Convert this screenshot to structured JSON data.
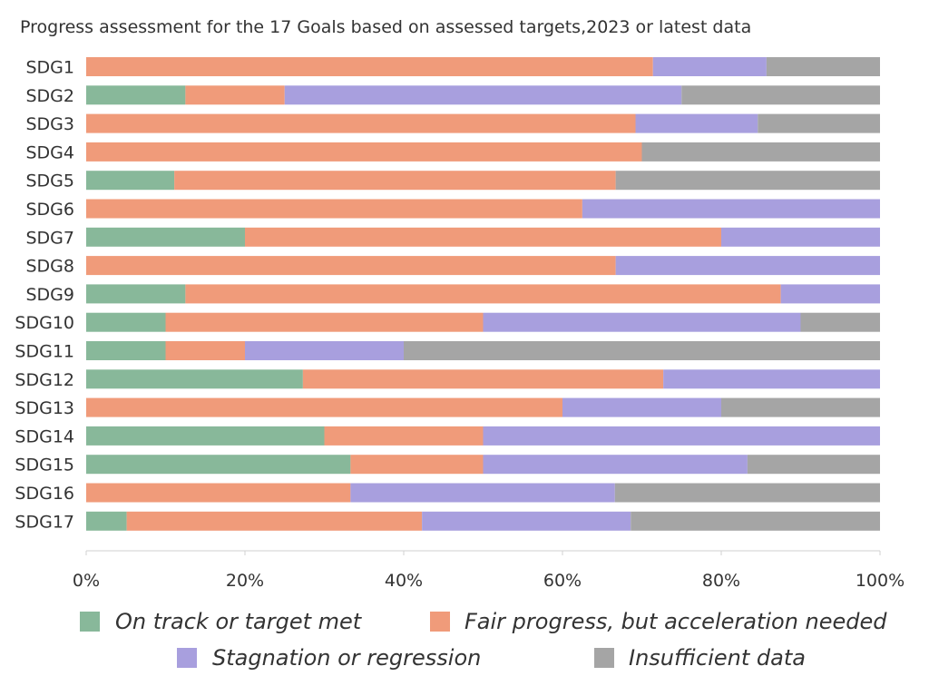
{
  "chart_data": {
    "type": "bar",
    "orientation": "horizontal",
    "stacked": true,
    "title": "Progress assessment for the 17 Goals based on assessed targets,2023 or latest data",
    "categories": [
      "SDG1",
      "SDG2",
      "SDG3",
      "SDG4",
      "SDG5",
      "SDG6",
      "SDG7",
      "SDG8",
      "SDG9",
      "SDG10",
      "SDG11",
      "SDG12",
      "SDG13",
      "SDG14",
      "SDG15",
      "SDG16",
      "SDG17"
    ],
    "xlim": [
      0,
      100
    ],
    "xticks": [
      "0%",
      "20%",
      "40%",
      "60%",
      "80%",
      "100%"
    ],
    "grid": false,
    "legend_position": "bottom",
    "series": [
      {
        "name": "On track or target met",
        "color": "#88b89a",
        "values": [
          0,
          12.5,
          0,
          0,
          11.1,
          0,
          20,
          0,
          12.5,
          10,
          10,
          27.3,
          0,
          30,
          33.3,
          0,
          5.1
        ]
      },
      {
        "name": "Fair progress, but acceleration needed",
        "color": "#f09b7a",
        "values": [
          71.4,
          12.5,
          69.2,
          70,
          55.6,
          62.5,
          60,
          66.7,
          75,
          40,
          10,
          45.4,
          60,
          20,
          16.7,
          33.3,
          37.2
        ]
      },
      {
        "name": "Stagnation or regression",
        "color": "#a89fde",
        "values": [
          14.3,
          50,
          15.4,
          0,
          0,
          37.5,
          20,
          33.3,
          12.5,
          40,
          20,
          27.3,
          20,
          50,
          33.3,
          33.3,
          26.3
        ]
      },
      {
        "name": "Insufficient data",
        "color": "#a5a5a5",
        "values": [
          14.3,
          25,
          15.4,
          30,
          33.3,
          0,
          0,
          0,
          0,
          10,
          60,
          0,
          20,
          0,
          16.7,
          33.4,
          31.4
        ]
      }
    ]
  }
}
